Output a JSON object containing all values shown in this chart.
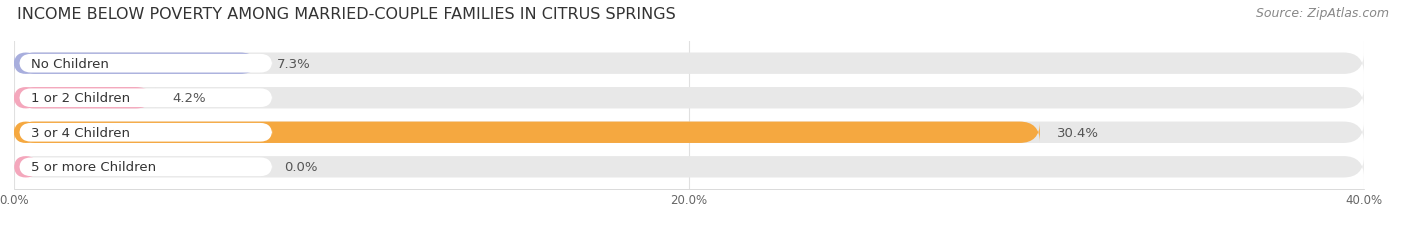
{
  "title": "INCOME BELOW POVERTY AMONG MARRIED-COUPLE FAMILIES IN CITRUS SPRINGS",
  "source": "Source: ZipAtlas.com",
  "categories": [
    "No Children",
    "1 or 2 Children",
    "3 or 4 Children",
    "5 or more Children"
  ],
  "values": [
    7.3,
    4.2,
    30.4,
    0.0
  ],
  "bar_colors": [
    "#a8aedd",
    "#f4a7bc",
    "#f5a840",
    "#f4a7bc"
  ],
  "xlim": [
    0,
    40
  ],
  "xticks": [
    0.0,
    20.0,
    40.0
  ],
  "xtick_labels": [
    "0.0%",
    "20.0%",
    "40.0%"
  ],
  "title_fontsize": 11.5,
  "source_fontsize": 9,
  "bar_height": 0.62,
  "value_label_fontsize": 9.5,
  "category_label_fontsize": 9.5,
  "background_color": "#ffffff",
  "bar_bg_color": "#e8e8e8",
  "label_bg_color": "#ffffff",
  "nub_values": [
    0.5,
    0.5,
    0.5,
    0.5
  ]
}
